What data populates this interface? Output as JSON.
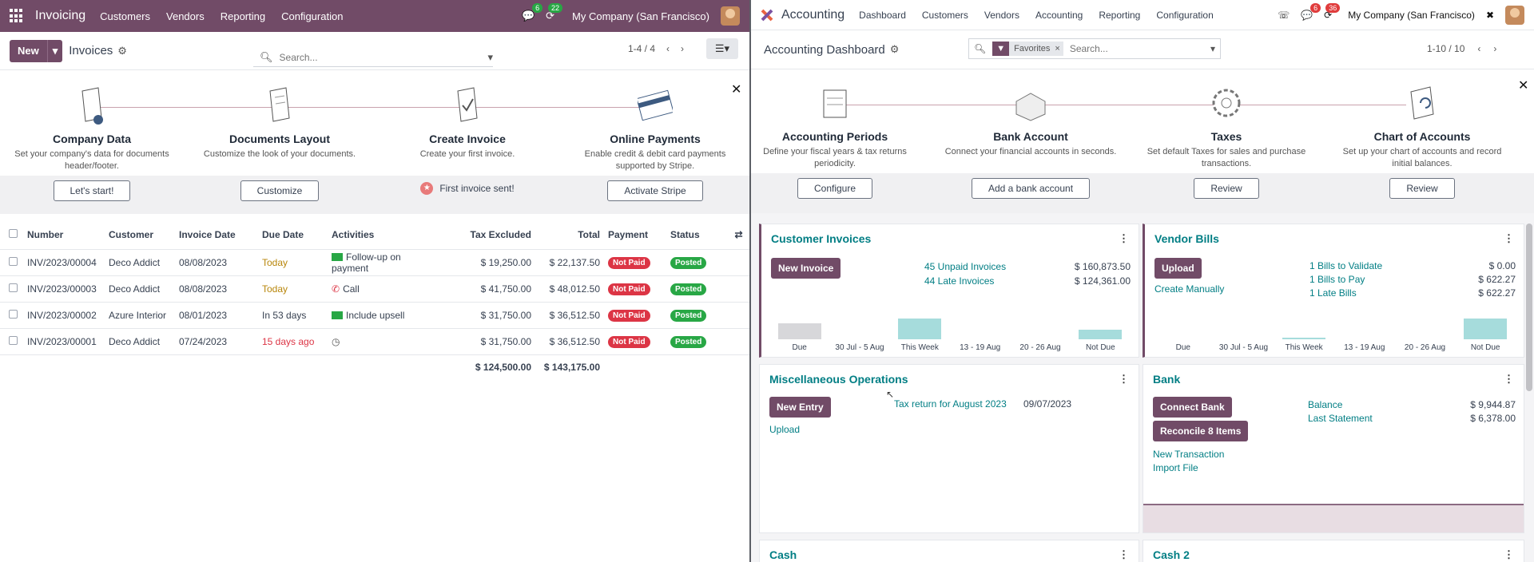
{
  "left": {
    "nav": {
      "app": "Invoicing",
      "menus": [
        "Customers",
        "Vendors",
        "Reporting",
        "Configuration"
      ],
      "chat_count": "6",
      "activity_count": "22",
      "company": "My Company (San Francisco)"
    },
    "cp": {
      "new_label": "New",
      "breadcrumb": "Invoices",
      "search_placeholder": "Search...",
      "pager": "1-4 / 4"
    },
    "onboarding": {
      "steps": [
        {
          "title": "Company Data",
          "desc": "Set your company's data for documents header/footer.",
          "action": "Let's start!"
        },
        {
          "title": "Documents Layout",
          "desc": "Customize the look of your documents.",
          "action": "Customize"
        },
        {
          "title": "Create Invoice",
          "desc": "Create your first invoice.",
          "done": "First invoice sent!"
        },
        {
          "title": "Online Payments",
          "desc": "Enable credit & debit card payments supported by Stripe.",
          "action": "Activate Stripe"
        }
      ]
    },
    "table": {
      "headers": [
        "Number",
        "Customer",
        "Invoice Date",
        "Due Date",
        "Activities",
        "Tax Excluded",
        "Total",
        "Payment",
        "Status"
      ],
      "rows": [
        {
          "number": "INV/2023/00004",
          "customer": "Deco Addict",
          "date": "08/08/2023",
          "due": "Today",
          "activity": "Follow-up on payment",
          "tax_excl": "$ 19,250.00",
          "total": "$ 22,137.50",
          "payment": "Not Paid",
          "status": "Posted"
        },
        {
          "number": "INV/2023/00003",
          "customer": "Deco Addict",
          "date": "08/08/2023",
          "due": "Today",
          "activity": "Call",
          "tax_excl": "$ 41,750.00",
          "total": "$ 48,012.50",
          "payment": "Not Paid",
          "status": "Posted"
        },
        {
          "number": "INV/2023/00002",
          "customer": "Azure Interior",
          "date": "08/01/2023",
          "due": "In 53 days",
          "activity": "Include upsell",
          "tax_excl": "$ 31,750.00",
          "total": "$ 36,512.50",
          "payment": "Not Paid",
          "status": "Posted"
        },
        {
          "number": "INV/2023/00001",
          "customer": "Deco Addict",
          "date": "07/24/2023",
          "due": "15 days ago",
          "activity": "",
          "tax_excl": "$ 31,750.00",
          "total": "$ 36,512.50",
          "payment": "Not Paid",
          "status": "Posted"
        }
      ],
      "totals": {
        "tax_excl": "$ 124,500.00",
        "total": "$ 143,175.00"
      }
    }
  },
  "right": {
    "nav": {
      "app": "Accounting",
      "menus": [
        "Dashboard",
        "Customers",
        "Vendors",
        "Accounting",
        "Reporting",
        "Configuration"
      ],
      "chat_count": "6",
      "activity_count": "36",
      "company": "My Company (San Francisco)"
    },
    "cp": {
      "breadcrumb": "Accounting Dashboard",
      "facet": "Favorites",
      "search_placeholder": "Search...",
      "pager": "1-10 / 10"
    },
    "onboarding": {
      "steps": [
        {
          "title": "Accounting Periods",
          "desc": "Define your fiscal years & tax returns periodicity.",
          "action": "Configure"
        },
        {
          "title": "Bank Account",
          "desc": "Connect your financial accounts in seconds.",
          "action": "Add a bank account"
        },
        {
          "title": "Taxes",
          "desc": "Set default Taxes for sales and purchase transactions.",
          "action": "Review"
        },
        {
          "title": "Chart of Accounts",
          "desc": "Set up your chart of accounts and record initial balances.",
          "action": "Review"
        }
      ]
    },
    "cards": {
      "customer_invoices": {
        "title": "Customer Invoices",
        "button": "New Invoice",
        "links": [
          "45 Unpaid Invoices",
          "44 Late Invoices"
        ],
        "amounts": [
          "$ 160,873.50",
          "$ 124,361.00"
        ],
        "graph_labels": [
          "Due",
          "30 Jul - 5 Aug",
          "This Week",
          "13 - 19 Aug",
          "20 - 26 Aug",
          "Not Due"
        ],
        "graph_values": [
          0.45,
          0,
          0.6,
          0,
          0,
          0.28
        ]
      },
      "vendor_bills": {
        "title": "Vendor Bills",
        "button": "Upload",
        "secondary": "Create Manually",
        "links": [
          "1 Bills to Validate",
          "1 Bills to Pay",
          "1 Late Bills"
        ],
        "amounts": [
          "$ 0.00",
          "$ 622.27",
          "$ 622.27"
        ],
        "graph_labels": [
          "Due",
          "30 Jul - 5 Aug",
          "This Week",
          "13 - 19 Aug",
          "20 - 26 Aug",
          "Not Due"
        ],
        "graph_values": [
          0,
          0,
          0.03,
          0,
          0,
          0.6
        ]
      },
      "misc": {
        "title": "Miscellaneous Operations",
        "button": "New Entry",
        "secondary": "Upload",
        "link": "Tax return for August 2023",
        "date": "09/07/2023"
      },
      "bank": {
        "title": "Bank",
        "button1": "Connect Bank",
        "button2": "Reconcile 8 Items",
        "links": [
          "New Transaction",
          "Import File"
        ],
        "stat_labels": [
          "Balance",
          "Last Statement"
        ],
        "stat_values": [
          "$ 9,944.87",
          "$ 6,378.00"
        ]
      },
      "cash": {
        "title": "Cash"
      },
      "cash2": {
        "title": "Cash 2"
      }
    }
  },
  "colors": {
    "brand": "#714b67",
    "teal": "#017e84",
    "danger": "#dc3545",
    "success": "#28a745"
  }
}
